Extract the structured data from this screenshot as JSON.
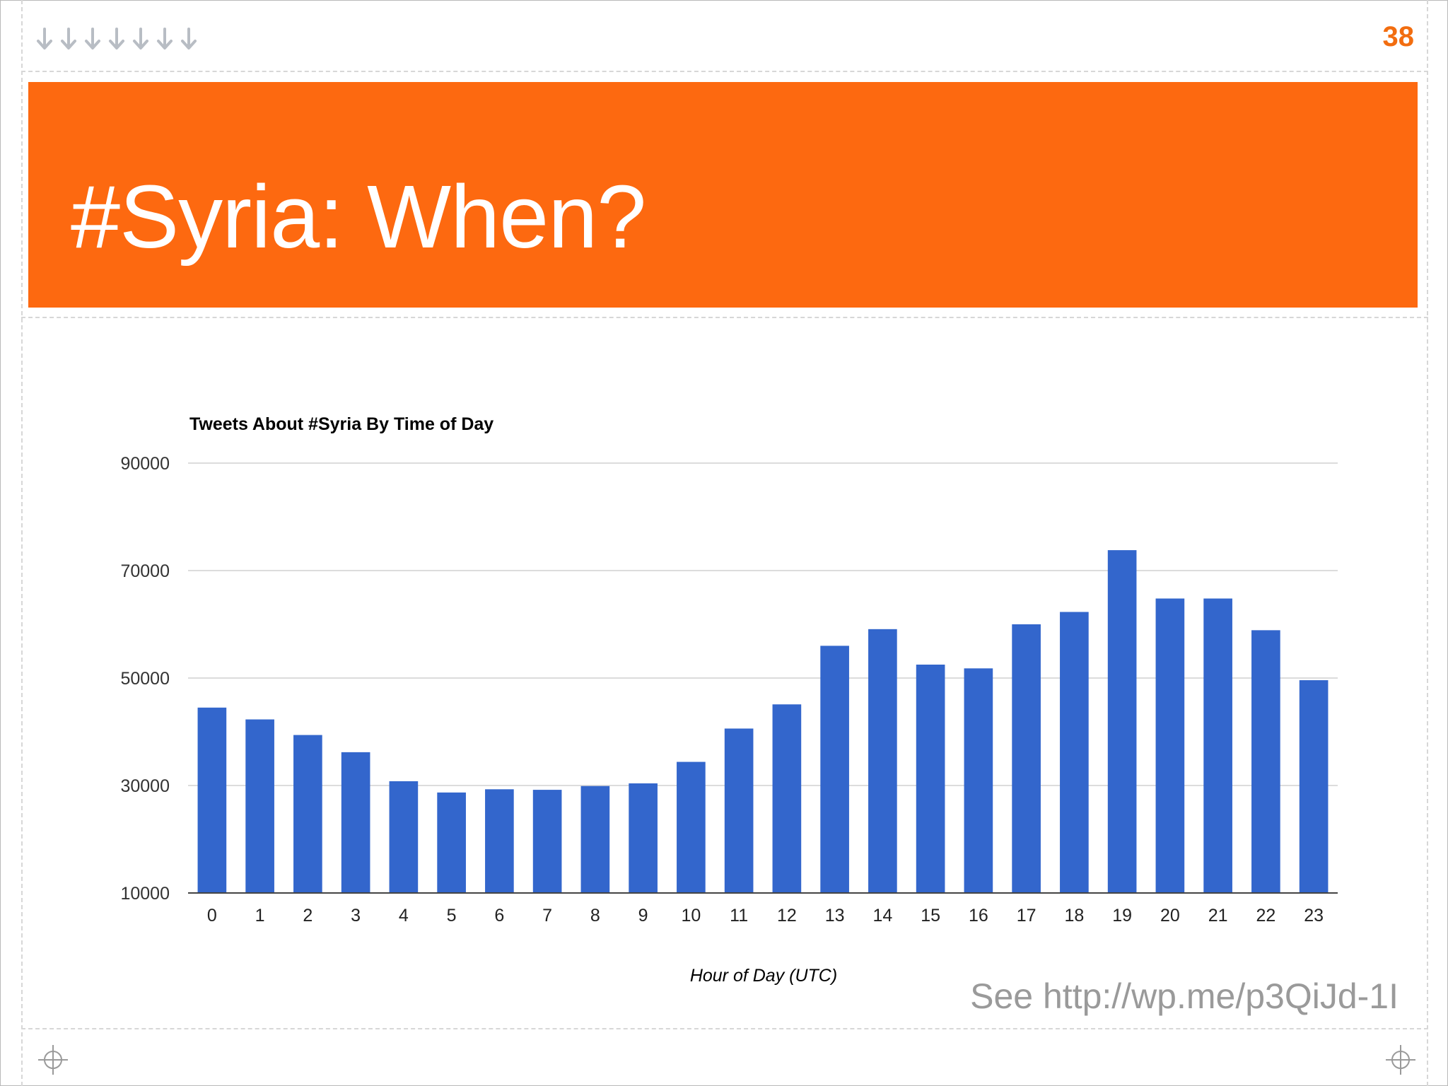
{
  "slide": {
    "number": "38",
    "title": "#Syria: When?",
    "footnote": "See http://wp.me/p3QiJd-1I",
    "accent_color": "#fd6910",
    "number_color": "#f26d0f"
  },
  "decorations": {
    "top_left_icon": "down-arrow-icon",
    "down_arrow_count": 7,
    "corner_icon": "crosshair-icon"
  },
  "chart_data": {
    "type": "bar",
    "title": "Tweets About #Syria By Time of Day",
    "xlabel": "Hour of Day (UTC)",
    "ylabel": "",
    "categories": [
      "0",
      "1",
      "2",
      "3",
      "4",
      "5",
      "6",
      "7",
      "8",
      "9",
      "10",
      "11",
      "12",
      "13",
      "14",
      "15",
      "16",
      "17",
      "18",
      "19",
      "20",
      "21",
      "22",
      "23"
    ],
    "values": [
      44500,
      42300,
      39400,
      36200,
      30800,
      28700,
      29300,
      29200,
      29900,
      30400,
      34400,
      40600,
      45100,
      56000,
      59100,
      52500,
      51800,
      60000,
      62300,
      73800,
      64800,
      64800,
      58900,
      49600
    ],
    "ylim": [
      10000,
      90000
    ],
    "yticks": [
      10000,
      30000,
      50000,
      70000,
      90000
    ],
    "ytick_labels": [
      "10000",
      "30000",
      "50000",
      "70000",
      "90000"
    ],
    "grid": true,
    "legend": "none",
    "bar_color": "#3366cc"
  }
}
